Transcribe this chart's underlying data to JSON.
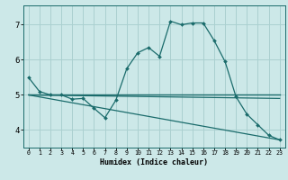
{
  "xlabel": "Humidex (Indice chaleur)",
  "bg_color": "#cce8e8",
  "grid_color": "#aad0d0",
  "line_color": "#1a6b6b",
  "xlim": [
    -0.5,
    23.5
  ],
  "ylim": [
    3.5,
    7.55
  ],
  "xticks": [
    0,
    1,
    2,
    3,
    4,
    5,
    6,
    7,
    8,
    9,
    10,
    11,
    12,
    13,
    14,
    15,
    16,
    17,
    18,
    19,
    20,
    21,
    22,
    23
  ],
  "yticks": [
    4,
    5,
    6,
    7
  ],
  "series1_x": [
    0,
    1,
    2,
    3,
    4,
    5,
    6,
    7,
    8,
    9,
    10,
    11,
    12,
    13,
    14,
    15,
    16,
    17,
    18,
    19,
    20,
    21,
    22,
    23
  ],
  "series1_y": [
    5.5,
    5.1,
    5.0,
    5.0,
    4.88,
    4.9,
    4.62,
    4.35,
    4.85,
    5.75,
    6.2,
    6.35,
    6.1,
    7.1,
    7.0,
    7.05,
    7.05,
    6.55,
    5.95,
    4.95,
    4.45,
    4.15,
    3.85,
    3.72
  ],
  "series2_x": [
    0,
    23
  ],
  "series2_y": [
    5.0,
    5.0
  ],
  "series3_x": [
    0,
    23
  ],
  "series3_y": [
    5.0,
    4.9
  ],
  "series4_x": [
    0,
    23
  ],
  "series4_y": [
    5.0,
    3.72
  ]
}
